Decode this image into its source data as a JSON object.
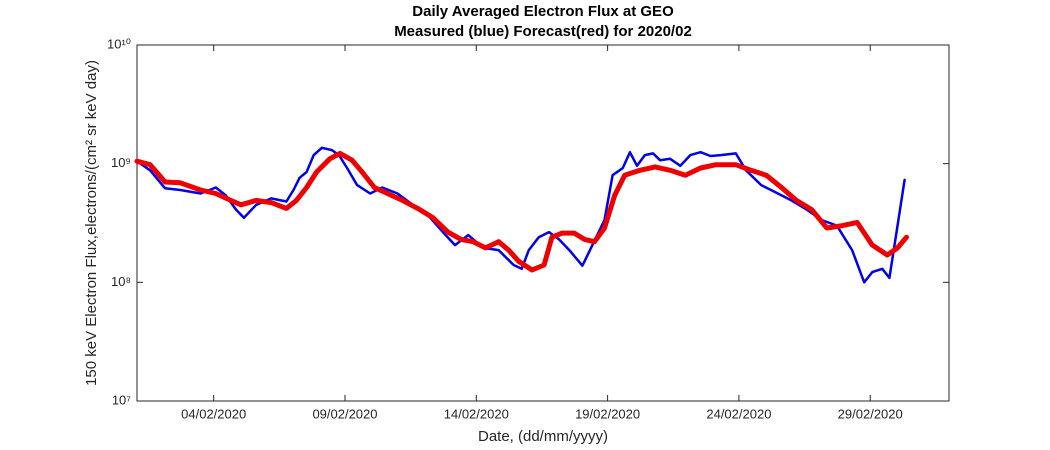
{
  "chart_data": {
    "type": "line",
    "title": "Daily Averaged Electron Flux at GEO",
    "subtitle": "Measured (blue) Forecast(red) for 2020/02",
    "x_label": "Date, (dd/mm/yyyy)",
    "y_label": "150 keV Electron Flux,electrons/(cm² sr keV day)",
    "log_y": true,
    "xlim": [
      1.08,
      32.0
    ],
    "ylim": [
      10000000,
      10000000000
    ],
    "xticks": [
      {
        "value": 4,
        "label": "04/02/2020"
      },
      {
        "value": 9,
        "label": "09/02/2020"
      },
      {
        "value": 14,
        "label": "14/02/2020"
      },
      {
        "value": 19,
        "label": "19/02/2020"
      },
      {
        "value": 24,
        "label": "24/02/2020"
      },
      {
        "value": 29,
        "label": "29/02/2020"
      }
    ],
    "yticks": [
      {
        "value": 10000000,
        "label": "10⁷"
      },
      {
        "value": 100000000,
        "label": "10⁸"
      },
      {
        "value": 1000000000,
        "label": "10⁹"
      },
      {
        "value": 10000000000,
        "label": "10¹⁰"
      }
    ],
    "series": [
      {
        "name": "Measured",
        "color": "#0000ee",
        "width": 2.5,
        "x": [
          1.08,
          1.58,
          2.15,
          2.73,
          3.5,
          4.08,
          4.46,
          4.85,
          5.15,
          5.62,
          6.19,
          6.77,
          7.04,
          7.27,
          7.54,
          7.81,
          8.12,
          8.5,
          8.77,
          9.08,
          9.46,
          9.96,
          10.42,
          11.0,
          11.58,
          12.15,
          12.73,
          13.19,
          13.69,
          14.27,
          14.85,
          15.42,
          15.73,
          16.0,
          16.38,
          16.77,
          17.15,
          17.54,
          18.04,
          18.42,
          18.88,
          19.19,
          19.58,
          19.85,
          20.12,
          20.42,
          20.73,
          21.0,
          21.38,
          21.77,
          22.15,
          22.54,
          22.92,
          23.31,
          23.88,
          24.27,
          24.85,
          25.42,
          26.0,
          26.58,
          27.15,
          27.73,
          28.31,
          28.77,
          29.08,
          29.46,
          29.73,
          29.96,
          30.31
        ],
        "values": [
          1050000000,
          880000000,
          620000000,
          600000000,
          560000000,
          630000000,
          540000000,
          410000000,
          350000000,
          450000000,
          510000000,
          480000000,
          600000000,
          760000000,
          850000000,
          1180000000,
          1360000000,
          1300000000,
          1180000000,
          920000000,
          660000000,
          560000000,
          630000000,
          560000000,
          450000000,
          370000000,
          265000000,
          206000000,
          250000000,
          195000000,
          187000000,
          140000000,
          130000000,
          187000000,
          240000000,
          265000000,
          230000000,
          187000000,
          138000000,
          206000000,
          335000000,
          800000000,
          920000000,
          1250000000,
          960000000,
          1180000000,
          1220000000,
          1070000000,
          1100000000,
          960000000,
          1180000000,
          1250000000,
          1160000000,
          1180000000,
          1220000000,
          880000000,
          660000000,
          570000000,
          490000000,
          410000000,
          335000000,
          300000000,
          187000000,
          100000000,
          122000000,
          130000000,
          109000000,
          230000000,
          730000000
        ]
      },
      {
        "name": "Forecast",
        "color": "#ee0000",
        "width": 5,
        "x": [
          1.08,
          1.58,
          2.15,
          2.73,
          3.5,
          4.08,
          4.65,
          5.04,
          5.62,
          6.19,
          6.77,
          7.15,
          7.54,
          7.92,
          8.42,
          8.81,
          9.27,
          9.65,
          10.12,
          10.62,
          11.19,
          11.77,
          12.35,
          12.92,
          13.42,
          13.88,
          14.35,
          14.85,
          15.23,
          15.62,
          16.12,
          16.58,
          16.88,
          17.27,
          17.73,
          18.12,
          18.5,
          18.88,
          19.27,
          19.65,
          20.23,
          20.81,
          21.38,
          21.96,
          22.54,
          23.12,
          23.88,
          24.46,
          25.04,
          25.62,
          26.19,
          26.77,
          27.35,
          27.92,
          28.5,
          29.08,
          29.65,
          30.04,
          30.38
        ],
        "values": [
          1050000000,
          980000000,
          700000000,
          690000000,
          600000000,
          560000000,
          490000000,
          450000000,
          490000000,
          470000000,
          420000000,
          490000000,
          630000000,
          850000000,
          1100000000,
          1220000000,
          1070000000,
          850000000,
          630000000,
          560000000,
          490000000,
          420000000,
          350000000,
          265000000,
          230000000,
          220000000,
          195000000,
          220000000,
          187000000,
          150000000,
          127000000,
          140000000,
          240000000,
          260000000,
          260000000,
          230000000,
          220000000,
          287000000,
          540000000,
          800000000,
          880000000,
          940000000,
          880000000,
          800000000,
          920000000,
          980000000,
          980000000,
          880000000,
          800000000,
          630000000,
          490000000,
          410000000,
          287000000,
          300000000,
          320000000,
          206000000,
          170000000,
          195000000,
          240000000
        ]
      }
    ]
  }
}
